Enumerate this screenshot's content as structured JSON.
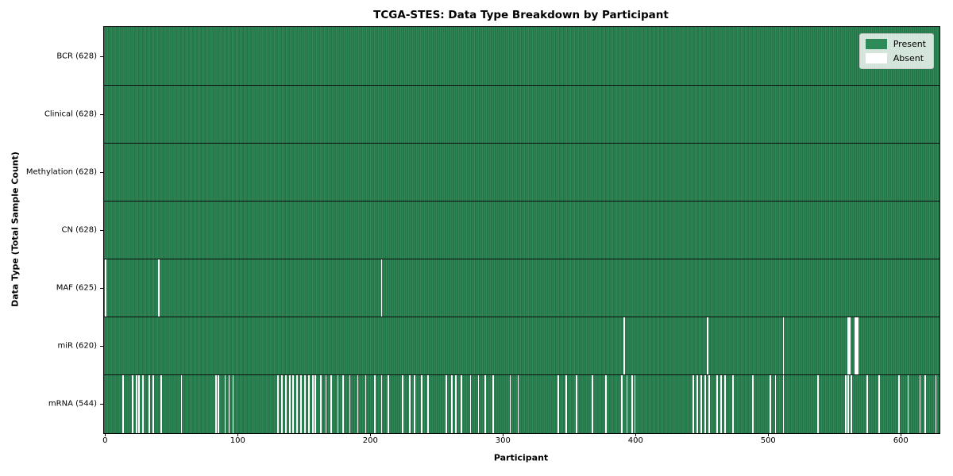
{
  "chart_data": {
    "type": "heatmap",
    "title": "TCGA-STES: Data Type Breakdown by Participant",
    "xlabel": "Participant",
    "ylabel": "Data Type (Total Sample Count)",
    "n_participants": 628,
    "x_ticks": [
      0,
      100,
      200,
      300,
      400,
      500,
      600
    ],
    "xlim": [
      0,
      628
    ],
    "grid": false,
    "legend": {
      "position": "upper right",
      "entries": [
        {
          "label": "Present",
          "color": "#2e8b57"
        },
        {
          "label": "Absent",
          "color": "#ffffff"
        }
      ]
    },
    "colors": {
      "present": "#2e8b57",
      "present_edge": "#1d5737",
      "absent": "#ffffff",
      "separator": "#0d0d0d"
    },
    "rows": [
      {
        "name": "BCR",
        "label": "BCR (628)",
        "present_count": 628,
        "absent_participants": []
      },
      {
        "name": "Clinical",
        "label": "Clinical (628)",
        "present_count": 628,
        "absent_participants": []
      },
      {
        "name": "Methylation",
        "label": "Methylation (628)",
        "present_count": 628,
        "absent_participants": []
      },
      {
        "name": "CN",
        "label": "CN (628)",
        "present_count": 628,
        "absent_participants": []
      },
      {
        "name": "MAF",
        "label": "MAF (625)",
        "present_count": 625,
        "absent_participants": [
          0,
          40,
          208
        ]
      },
      {
        "name": "miR",
        "label": "miR (620)",
        "present_count": 620,
        "absent_participants": [
          391,
          454,
          511,
          560,
          561,
          565,
          566,
          567
        ]
      },
      {
        "name": "mRNA",
        "label": "mRNA (544)",
        "present_count": 544,
        "absent_participants": [
          13,
          20,
          23,
          25,
          28,
          33,
          36,
          42,
          57,
          83,
          85,
          90,
          93,
          96,
          130,
          133,
          136,
          139,
          141,
          144,
          147,
          150,
          153,
          156,
          158,
          162,
          166,
          170,
          175,
          179,
          184,
          190,
          196,
          203,
          208,
          213,
          224,
          229,
          233,
          238,
          243,
          257,
          261,
          264,
          268,
          275,
          281,
          286,
          292,
          305,
          311,
          341,
          347,
          355,
          367,
          377,
          389,
          393,
          397,
          399,
          443,
          446,
          449,
          452,
          455,
          461,
          464,
          467,
          473,
          488,
          501,
          505,
          511,
          537,
          558,
          560,
          562,
          574,
          583,
          598,
          605,
          614,
          618,
          626
        ]
      }
    ]
  }
}
